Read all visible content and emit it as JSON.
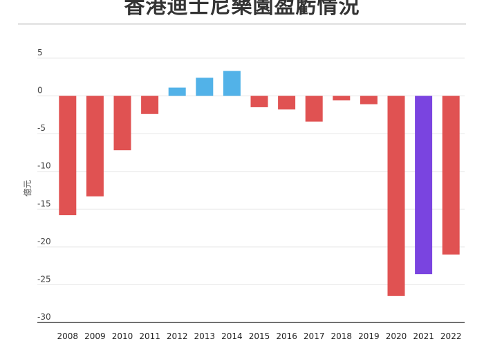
{
  "chart_data": {
    "type": "bar",
    "title": "香港迪士尼樂園盈虧情況",
    "ylabel": "億元",
    "xlabel": "",
    "categories": [
      "2008",
      "2009",
      "2010",
      "2011",
      "2012",
      "2013",
      "2014",
      "2015",
      "2016",
      "2017",
      "2018",
      "2019",
      "2020",
      "2021",
      "2022"
    ],
    "values": [
      -15.8,
      -13.3,
      -7.2,
      -2.4,
      1.1,
      2.4,
      3.3,
      -1.5,
      -1.8,
      -3.4,
      -0.6,
      -1.1,
      -26.5,
      -23.6,
      -21.0
    ],
    "colors": [
      "#e05252",
      "#e05252",
      "#e05252",
      "#e05252",
      "#52b2e8",
      "#52b2e8",
      "#52b2e8",
      "#e05252",
      "#e05252",
      "#e05252",
      "#e05252",
      "#e05252",
      "#e05252",
      "#7a44e0",
      "#e05252"
    ],
    "ylim": [
      -30,
      5
    ],
    "yticks": [
      5,
      0,
      -5,
      -10,
      -15,
      -20,
      -25,
      -30
    ],
    "grid": true,
    "legend": "none"
  }
}
